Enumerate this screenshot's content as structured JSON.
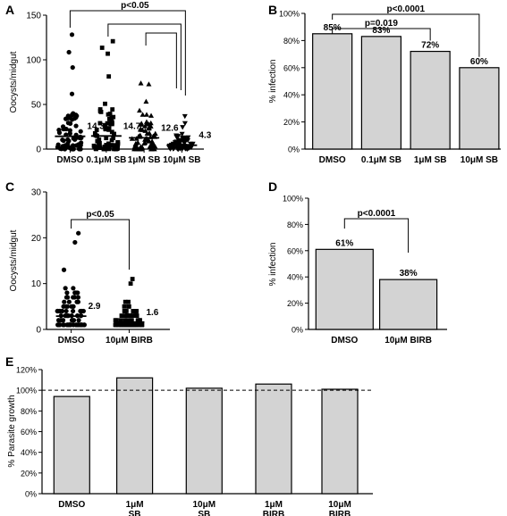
{
  "panels": [
    {
      "id": "A",
      "type": "scatter",
      "letter": "A",
      "ylabel": "Oocysts/midgut",
      "yticks": [
        "0",
        "50",
        "100",
        "150"
      ],
      "ylim": [
        0,
        150
      ],
      "categories": [
        "DMSO",
        "0.1μM SB",
        "1μM SB",
        "10μM SB"
      ],
      "markers": [
        "circle",
        "square",
        "triangle",
        "triangle-down"
      ],
      "means": [
        14.3,
        14.7,
        12.6,
        4.3
      ],
      "mean_labels": [
        "14.3",
        "14.7",
        "12.6",
        "4.3"
      ],
      "brackets": [
        {
          "from": 0,
          "to": 3,
          "label": "p<0.05"
        },
        {
          "from": 1,
          "to": 3,
          "label": ""
        },
        {
          "from": 2,
          "to": 3,
          "label": ""
        }
      ]
    },
    {
      "id": "B",
      "type": "bar",
      "letter": "B",
      "ylabel": "% infection",
      "yticks": [
        "0%",
        "20%",
        "40%",
        "60%",
        "80%",
        "100%"
      ],
      "ylim": [
        0,
        100
      ],
      "categories": [
        "DMSO",
        "0.1μM SB",
        "1μM SB",
        "10μM SB"
      ],
      "values": [
        85,
        83,
        72,
        60
      ],
      "value_labels": [
        "85%",
        "83%",
        "72%",
        "60%"
      ],
      "bar_color": "#d3d3d3",
      "brackets": [
        {
          "from": 0,
          "to": 3,
          "label": "p<0.0001"
        },
        {
          "from": 0,
          "to": 2,
          "label": "p=0.019"
        }
      ]
    },
    {
      "id": "C",
      "type": "scatter",
      "letter": "C",
      "ylabel": "Oocysts/midgut",
      "yticks": [
        "0",
        "10",
        "20",
        "30"
      ],
      "ylim": [
        0,
        30
      ],
      "categories": [
        "DMSO",
        "10μM BIRB"
      ],
      "markers": [
        "circle",
        "square"
      ],
      "means": [
        2.9,
        1.6
      ],
      "mean_labels": [
        "2.9",
        "1.6"
      ],
      "brackets": [
        {
          "from": 0,
          "to": 1,
          "label": "p<0.05"
        }
      ]
    },
    {
      "id": "D",
      "type": "bar",
      "letter": "D",
      "ylabel": "% infection",
      "yticks": [
        "0%",
        "20%",
        "40%",
        "60%",
        "80%",
        "100%"
      ],
      "ylim": [
        0,
        100
      ],
      "categories": [
        "DMSO",
        "10μM BIRB"
      ],
      "values": [
        61,
        38
      ],
      "value_labels": [
        "61%",
        "38%"
      ],
      "bar_color": "#d3d3d3",
      "brackets": [
        {
          "from": 0,
          "to": 1,
          "label": "p<0.0001"
        }
      ]
    },
    {
      "id": "E",
      "type": "bar",
      "letter": "E",
      "ylabel": "% Parasite growth",
      "yticks": [
        "0%",
        "20%",
        "40%",
        "60%",
        "80%",
        "100%",
        "120%"
      ],
      "ylim": [
        0,
        120
      ],
      "categories": [
        "DMSO",
        "1μM\nSB",
        "10μM\nSB",
        "1μM\nBIRB",
        "10μM\nBIRB"
      ],
      "values": [
        94,
        112,
        102,
        106,
        101
      ],
      "reference_line": 100,
      "bar_color": "#d3d3d3"
    }
  ],
  "chart_data": [
    {
      "type": "scatter",
      "ylabel": "Oocysts/midgut",
      "ylim": [
        0,
        150
      ],
      "categories": [
        "DMSO",
        "0.1μM SB",
        "1μM SB",
        "10μM SB"
      ],
      "series": [
        {
          "values": [
            14.3,
            14.7,
            12.6,
            4.3
          ]
        }
      ]
    },
    {
      "type": "bar",
      "ylabel": "% infection",
      "ylim": [
        0,
        100
      ],
      "categories": [
        "DMSO",
        "0.1μM SB",
        "1μM SB",
        "10μM SB"
      ],
      "values": [
        85,
        83,
        72,
        60
      ]
    },
    {
      "type": "scatter",
      "ylabel": "Oocysts/midgut",
      "ylim": [
        0,
        30
      ],
      "categories": [
        "DMSO",
        "10μM BIRB"
      ],
      "series": [
        {
          "values": [
            2.9,
            1.6
          ]
        }
      ]
    },
    {
      "type": "bar",
      "ylabel": "% infection",
      "ylim": [
        0,
        100
      ],
      "categories": [
        "DMSO",
        "10μM BIRB"
      ],
      "values": [
        61,
        38
      ]
    },
    {
      "type": "bar",
      "ylabel": "% Parasite growth",
      "ylim": [
        0,
        120
      ],
      "categories": [
        "DMSO",
        "1μM SB",
        "10μM SB",
        "1μM BIRB",
        "10μM BIRB"
      ],
      "values": [
        94,
        112,
        102,
        106,
        101
      ]
    }
  ]
}
